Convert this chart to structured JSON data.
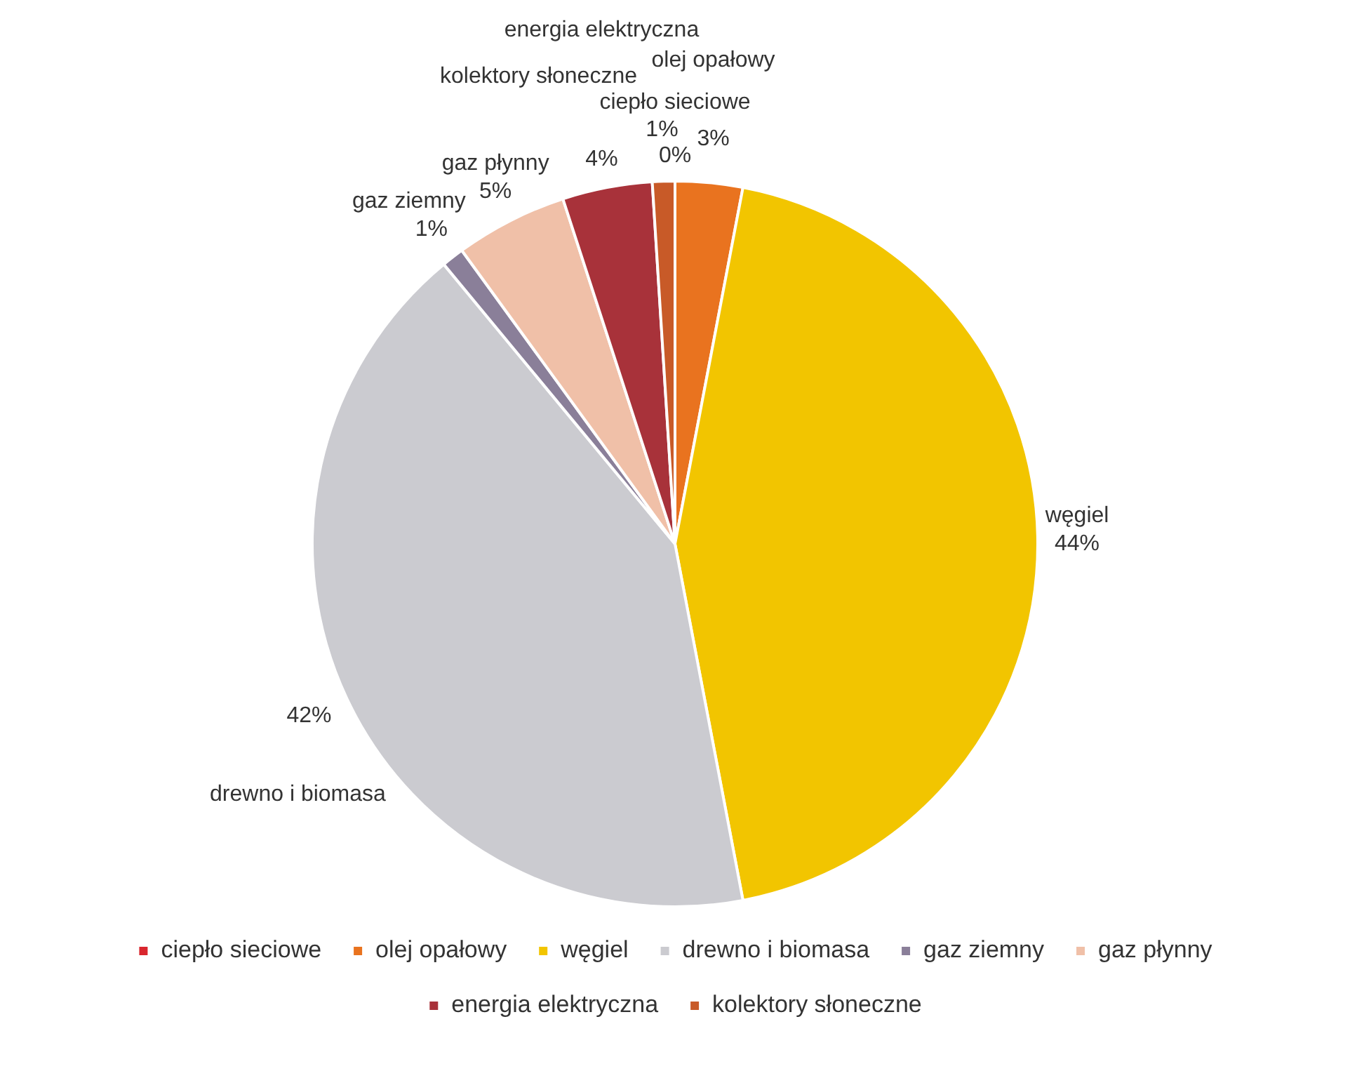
{
  "chart_data": {
    "type": "pie",
    "categories": [
      "ciepło sieciowe",
      "olej opałowy",
      "węgiel",
      "drewno i biomasa",
      "gaz ziemny",
      "gaz płynny",
      "energia elektryczna",
      "kolektory słoneczne"
    ],
    "values": [
      0,
      3,
      44,
      42,
      1,
      5,
      4,
      1
    ],
    "value_labels": [
      "0%",
      "3%",
      "44%",
      "42%",
      "1%",
      "5%",
      "4%",
      "1%"
    ],
    "colors": [
      "#d9262e",
      "#e9731f",
      "#f2c500",
      "#cbcbd0",
      "#8a7f99",
      "#f0c0a8",
      "#a8323a",
      "#c85a28"
    ],
    "legend": "bottom"
  }
}
